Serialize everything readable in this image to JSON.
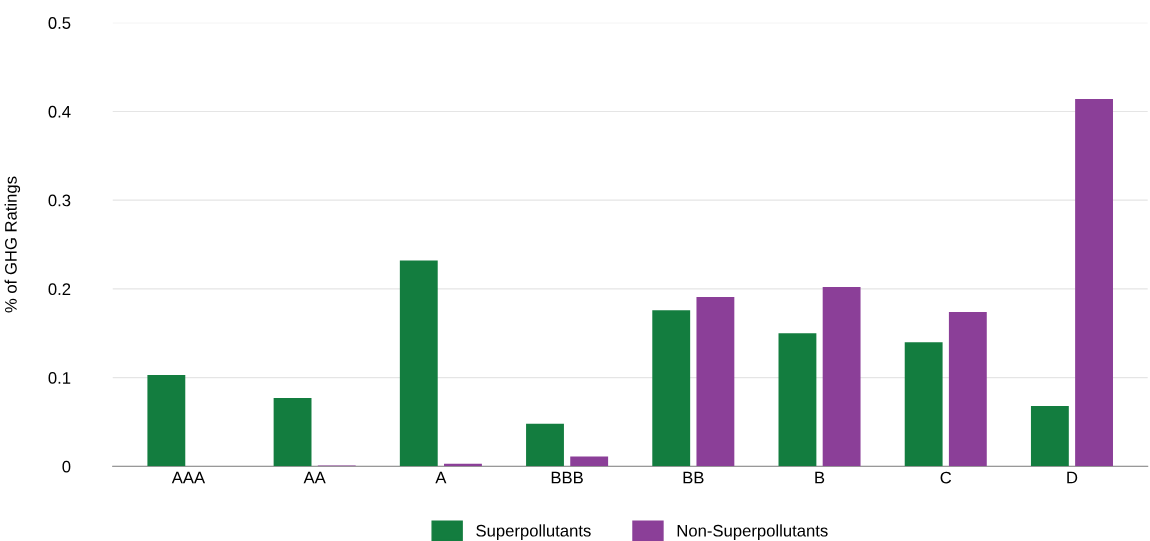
{
  "chart_data": {
    "type": "bar",
    "ylabel": "% of GHG Ratings",
    "categories": [
      "AAA",
      "AA",
      "A",
      "BBB",
      "BB",
      "B",
      "C",
      "D"
    ],
    "series": [
      {
        "name": "Superpollutants",
        "color": "#137d3f",
        "values": [
          0.103,
          0.077,
          0.232,
          0.048,
          0.176,
          0.15,
          0.14,
          0.068
        ]
      },
      {
        "name": "Non-Superpollutants",
        "color": "#8b3f98",
        "values": [
          0,
          0.001,
          0.003,
          0.011,
          0.191,
          0.202,
          0.174,
          0.414
        ]
      }
    ],
    "ylim": [
      0,
      0.5
    ],
    "yticks": [
      0,
      0.1,
      0.2,
      0.3,
      0.4,
      0.5
    ],
    "grid": "y",
    "legend": "bottom"
  }
}
